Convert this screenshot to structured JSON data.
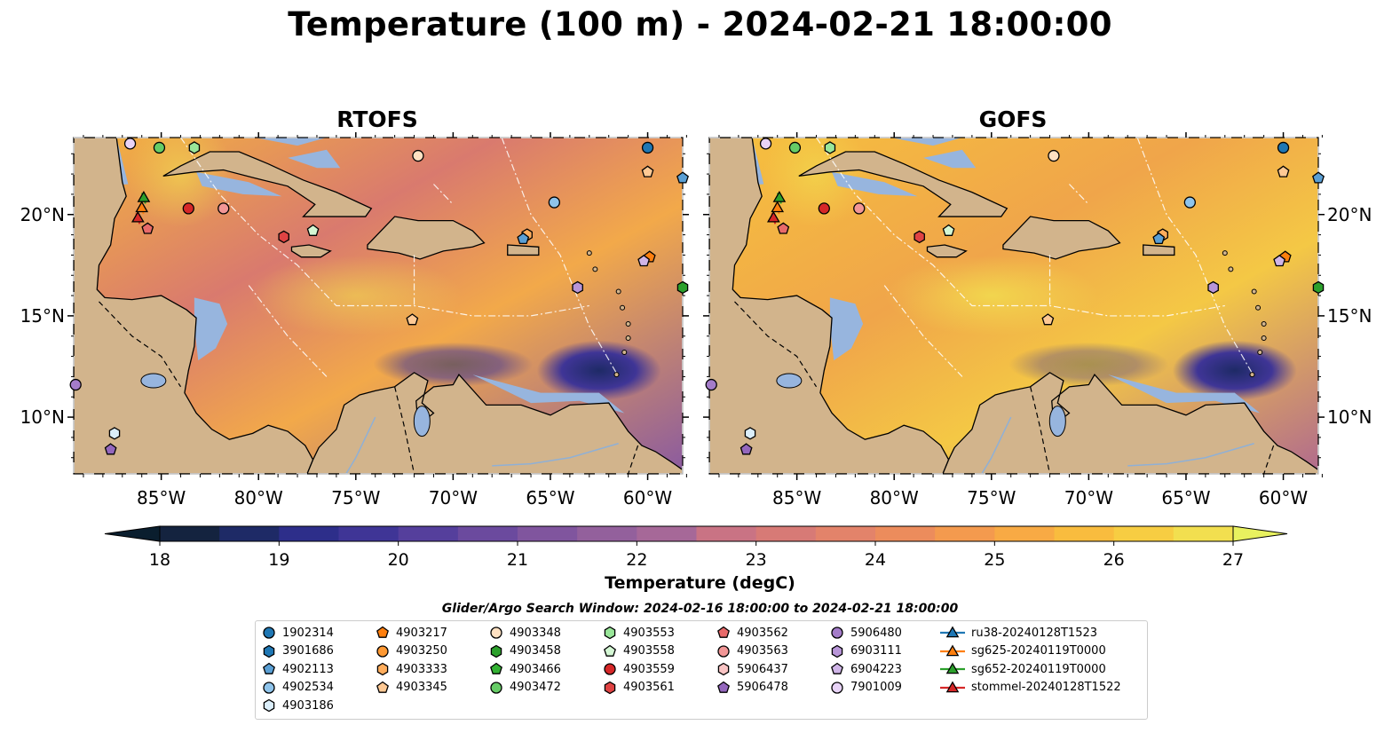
{
  "title": "Temperature (100 m) - 2024-02-21 18:00:00",
  "panels": [
    {
      "title": "RTOFS"
    },
    {
      "title": "GOFS"
    }
  ],
  "axes": {
    "lon_ticks": [
      "85°W",
      "80°W",
      "75°W",
      "70°W",
      "65°W",
      "60°W"
    ],
    "lat_ticks": [
      "20°N",
      "15°N",
      "10°N"
    ],
    "lon_range": [
      -89.5,
      -58.2
    ],
    "lat_range": [
      7.2,
      23.8
    ]
  },
  "colorbar": {
    "label": "Temperature (degC)",
    "ticks": [
      "18",
      "19",
      "20",
      "21",
      "22",
      "23",
      "24",
      "25",
      "26",
      "27"
    ],
    "range": [
      18,
      27
    ],
    "colors": [
      "#0a1e2e",
      "#14233f",
      "#1e2a66",
      "#2d2e8a",
      "#3f3596",
      "#553f9c",
      "#6b4a9e",
      "#80559e",
      "#93609c",
      "#a66898",
      "#b86e8e",
      "#c97384",
      "#d77a76",
      "#e3836a",
      "#ec8c5c",
      "#f49a4e",
      "#f8aa44",
      "#f9bc3e",
      "#f7cd42",
      "#f2df4f",
      "#e8f15f"
    ],
    "extend": "both"
  },
  "search_window": "Glider/Argo Search Window: 2024-02-16 18:00:00 to 2024-02-21 18:00:00",
  "legend": [
    {
      "label": "1902314",
      "marker": "circle",
      "color": "#1f77b4"
    },
    {
      "label": "3901686",
      "marker": "hexagon",
      "color": "#1f77b4"
    },
    {
      "label": "4902113",
      "marker": "pentagon",
      "color": "#5a9fd4"
    },
    {
      "label": "4902534",
      "marker": "circle",
      "color": "#8fc4eb"
    },
    {
      "label": "4903186",
      "marker": "hexagon",
      "color": "#dbeefa"
    },
    {
      "label": "4903217",
      "marker": "pentagon",
      "color": "#ff7f0e"
    },
    {
      "label": "4903250",
      "marker": "circle",
      "color": "#ff9933"
    },
    {
      "label": "4903333",
      "marker": "hexagon",
      "color": "#ffad5c"
    },
    {
      "label": "4903345",
      "marker": "pentagon",
      "color": "#ffc994"
    },
    {
      "label": "4903348",
      "marker": "circle",
      "color": "#ffe1c2"
    },
    {
      "label": "4903458",
      "marker": "hexagon",
      "color": "#2ca02c"
    },
    {
      "label": "4903466",
      "marker": "pentagon",
      "color": "#33b233"
    },
    {
      "label": "4903472",
      "marker": "circle",
      "color": "#66cc66"
    },
    {
      "label": "4903553",
      "marker": "hexagon",
      "color": "#99e699"
    },
    {
      "label": "4903558",
      "marker": "pentagon",
      "color": "#d4f7d4"
    },
    {
      "label": "4903559",
      "marker": "circle",
      "color": "#d62728"
    },
    {
      "label": "4903561",
      "marker": "hexagon",
      "color": "#e04343"
    },
    {
      "label": "4903562",
      "marker": "pentagon",
      "color": "#e86a6a"
    },
    {
      "label": "4903563",
      "marker": "circle",
      "color": "#f29696"
    },
    {
      "label": "5906437",
      "marker": "hexagon",
      "color": "#f9c4c4"
    },
    {
      "label": "5906478",
      "marker": "pentagon",
      "color": "#9467bd"
    },
    {
      "label": "5906480",
      "marker": "circle",
      "color": "#a47cc9"
    },
    {
      "label": "6903111",
      "marker": "hexagon",
      "color": "#b895d8"
    },
    {
      "label": "6904223",
      "marker": "pentagon",
      "color": "#d0b5e8"
    },
    {
      "label": "7901009",
      "marker": "circle",
      "color": "#e8d3f7"
    },
    {
      "label": "ru38-20240128T1523",
      "marker": "triangle-line",
      "color": "#1f77b4"
    },
    {
      "label": "sg625-20240119T0000",
      "marker": "triangle-line",
      "color": "#ff7f0e"
    },
    {
      "label": "sg652-20240119T0000",
      "marker": "triangle-line",
      "color": "#2ca02c"
    },
    {
      "label": "stommel-20240128T1522",
      "marker": "triangle-line",
      "color": "#d62728"
    }
  ],
  "floats": [
    {
      "id": "1902314",
      "lon": -60.0,
      "lat": 23.3
    },
    {
      "id": "4903345",
      "lon": -60.0,
      "lat": 22.1
    },
    {
      "id": "4902113",
      "lon": -58.2,
      "lat": 21.8
    },
    {
      "id": "4903348",
      "lon": -71.8,
      "lat": 22.9
    },
    {
      "id": "7901009",
      "lon": -86.6,
      "lat": 23.5
    },
    {
      "id": "4903472",
      "lon": -85.1,
      "lat": 23.3
    },
    {
      "id": "4903553",
      "lon": -83.3,
      "lat": 23.3
    },
    {
      "id": "4902534",
      "lon": -64.8,
      "lat": 20.6
    },
    {
      "id": "4903563",
      "lon": -81.8,
      "lat": 20.3
    },
    {
      "id": "4903559",
      "lon": -83.6,
      "lat": 20.3
    },
    {
      "id": "4903561",
      "lon": -78.7,
      "lat": 18.9
    },
    {
      "id": "4903558",
      "lon": -77.2,
      "lat": 19.2
    },
    {
      "id": "4903333",
      "lon": -66.2,
      "lat": 19.0
    },
    {
      "id": "4902113",
      "lon": -66.4,
      "lat": 18.8
    },
    {
      "id": "4903217",
      "lon": -59.9,
      "lat": 17.9
    },
    {
      "id": "6904223",
      "lon": -60.2,
      "lat": 17.7
    },
    {
      "id": "4903562",
      "lon": -85.7,
      "lat": 19.3
    },
    {
      "id": "6903111",
      "lon": -63.6,
      "lat": 16.4
    },
    {
      "id": "4903458",
      "lon": -58.2,
      "lat": 16.4
    },
    {
      "id": "4903345",
      "lon": -72.1,
      "lat": 14.8
    },
    {
      "id": "5906480",
      "lon": -89.4,
      "lat": 11.6
    },
    {
      "id": "4903186",
      "lon": -87.4,
      "lat": 9.2
    },
    {
      "id": "5906478",
      "lon": -87.6,
      "lat": 8.4
    }
  ],
  "gliders": [
    {
      "id": "sg652-20240119T0000",
      "lon": -85.9,
      "lat": 20.8
    },
    {
      "id": "sg625-20240119T0000",
      "lon": -86.0,
      "lat": 20.3
    },
    {
      "id": "stommel-20240128T1522",
      "lon": -86.2,
      "lat": 19.8
    }
  ]
}
